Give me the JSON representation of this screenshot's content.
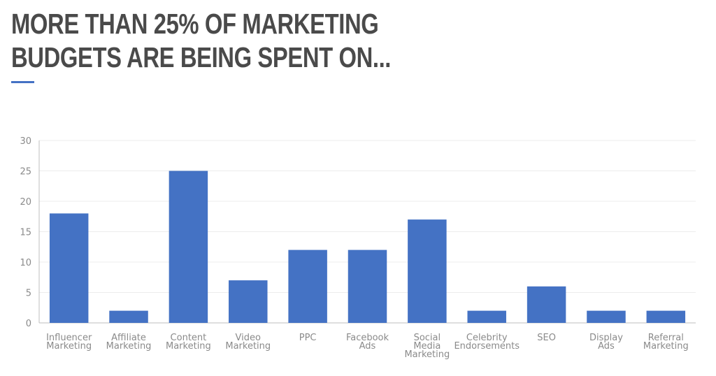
{
  "header": {
    "title_lines": [
      "More than 25% of marketing",
      "budgets are being spent on..."
    ]
  },
  "colors": {
    "bar": "#4472c4",
    "accent": "#4472c4",
    "grid": "#ececec",
    "axis": "#bfbfbf",
    "text": "#8a8a8a",
    "title": "#4a4a4a"
  },
  "chart_data": {
    "type": "bar",
    "categories": [
      [
        "Influencer",
        "Marketing"
      ],
      [
        "Affiliate",
        "Marketing"
      ],
      [
        "Content",
        "Marketing"
      ],
      [
        "Video",
        "Marketing"
      ],
      [
        "PPC"
      ],
      [
        "Facebook",
        "Ads"
      ],
      [
        "Social",
        "Media",
        "Marketing"
      ],
      [
        "Celebrity",
        "Endorsements"
      ],
      [
        "SEO"
      ],
      [
        "Display",
        "Ads"
      ],
      [
        "Referral",
        "Marketing"
      ]
    ],
    "values": [
      18,
      2,
      25,
      7,
      12,
      12,
      17,
      2,
      6,
      2,
      2
    ],
    "yticks": [
      0,
      5,
      10,
      15,
      20,
      25,
      30
    ],
    "ylim": [
      0,
      30
    ],
    "grid": true,
    "legend": "none"
  }
}
